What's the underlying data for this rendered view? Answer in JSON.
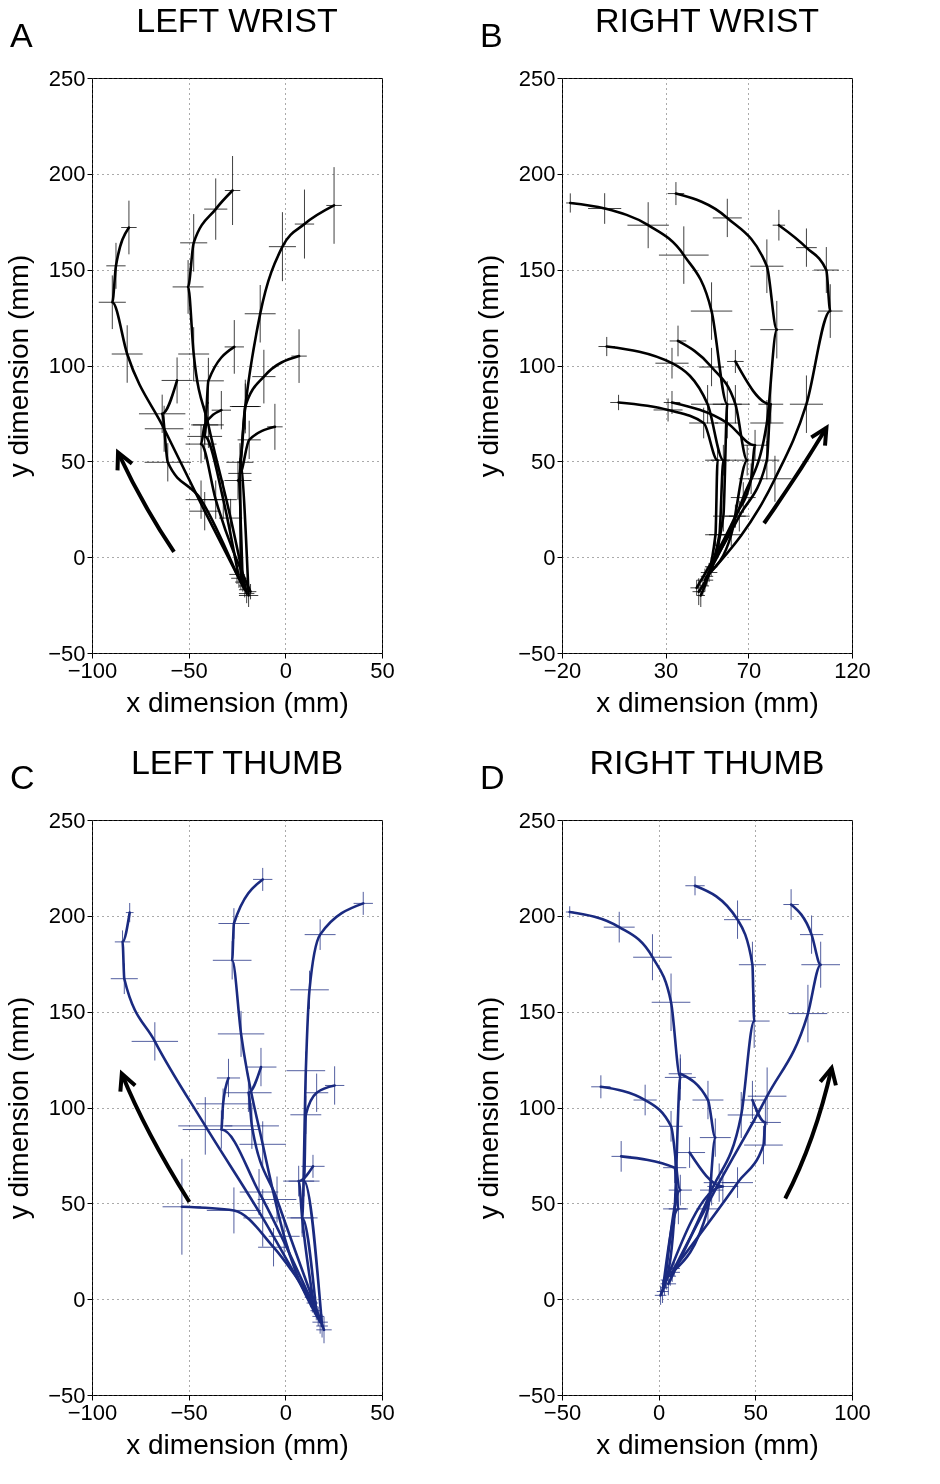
{
  "chart_data": [
    {
      "type": "line",
      "title": "LEFT WRIST",
      "xlabel": "x dimension (mm)",
      "ylabel": "y dimension (mm)",
      "annotations": [
        "A"
      ],
      "xlim": [
        -100,
        50
      ],
      "ylim": [
        -50,
        250
      ],
      "xticks": [
        -100,
        -50,
        0,
        50
      ],
      "yticks": [
        -50,
        0,
        50,
        100,
        150,
        200,
        250
      ],
      "grid": true,
      "line_style": "solid",
      "series": [
        {
          "color": "#000000",
          "x": [
            -21,
            -41.7,
            -62.7,
            -81.8,
            -89.5,
            -87.6,
            -80.9
          ],
          "values": [
            -17,
            24,
            67,
            106,
            133,
            152,
            172
          ],
          "xerrors": [
            3,
            8,
            10,
            8,
            7,
            5,
            4
          ],
          "errors": [
            4,
            10,
            12,
            15,
            14,
            12,
            14
          ]
        },
        {
          "color": "#000000",
          "x": [
            -20,
            -28.3,
            -39.8,
            -47.4,
            -50.3,
            -47.4,
            -36,
            -27.3
          ],
          "values": [
            -19,
            20.4,
            69,
            106,
            141,
            164,
            181.6,
            191.3
          ],
          "xerrors": [
            4,
            6,
            8,
            8,
            8,
            7,
            6,
            4
          ],
          "errors": [
            5,
            10,
            12,
            14,
            14,
            15,
            16,
            18
          ]
        },
        {
          "color": "#000000",
          "x": [
            -22,
            -24.5,
            -20.7,
            -13,
            -1.5,
            9.9,
            25.2
          ],
          "values": [
            -15,
            40,
            78.6,
            127,
            162,
            173.8,
            183.5
          ],
          "xerrors": [
            2,
            7,
            8,
            8,
            7,
            5,
            4
          ],
          "errors": [
            3,
            10,
            14,
            15,
            18,
            18,
            20
          ]
        },
        {
          "color": "#000000",
          "x": [
            -19,
            -23.5,
            -20.7,
            -11.1,
            7.1
          ],
          "values": [
            -20,
            49.5,
            78.6,
            94.2,
            104.9
          ],
          "xerrors": [
            5,
            7,
            7,
            6,
            4
          ],
          "errors": [
            6,
            10,
            12,
            14,
            14
          ]
        },
        {
          "color": "#000000",
          "x": [
            -23,
            -23.5,
            -18.7,
            -5.4
          ],
          "values": [
            -13,
            43.7,
            61.2,
            68
          ],
          "xerrors": [
            3,
            6,
            6,
            4
          ],
          "errors": [
            4,
            8,
            10,
            12
          ]
        },
        {
          "color": "#000000",
          "x": [
            -24,
            -32.1,
            -41.7,
            -39.8,
            -26.4
          ],
          "values": [
            -11,
            30,
            63,
            92,
            109.7
          ],
          "xerrors": [
            4,
            7,
            9,
            8,
            5
          ],
          "errors": [
            5,
            10,
            12,
            12,
            14
          ]
        },
        {
          "color": "#000000",
          "x": [
            -18,
            -36,
            -43.6,
            -41.7,
            -33.1
          ],
          "values": [
            -18,
            30,
            59,
            69,
            76.7
          ],
          "xerrors": [
            3,
            7,
            8,
            7,
            5
          ],
          "errors": [
            4,
            10,
            10,
            10,
            10
          ]
        },
        {
          "color": "#000000",
          "x": [
            -25,
            -43.6,
            -60.8,
            -63.7,
            -56
          ],
          "values": [
            -9,
            30,
            49.5,
            74.8,
            92.2
          ],
          "xerrors": [
            4,
            8,
            12,
            12,
            8
          ],
          "errors": [
            5,
            10,
            10,
            10,
            12
          ]
        }
      ]
    },
    {
      "type": "line",
      "title": "RIGHT WRIST",
      "xlabel": "x dimension (mm)",
      "ylabel": "y dimension (mm)",
      "annotations": [
        "B"
      ],
      "xlim": [
        -20,
        120
      ],
      "ylim": [
        -50,
        250
      ],
      "xticks": [
        -20,
        30,
        70,
        120
      ],
      "yticks": [
        -50,
        0,
        50,
        100,
        150,
        200,
        250
      ],
      "grid": true,
      "line_style": "solid",
      "series": [
        {
          "color": "#000000",
          "x": [
            48,
            57.9,
            59.8,
            52.2,
            38.8,
            21.6,
            0.6,
            -16
          ],
          "values": [
            -15,
            21.4,
            79.8,
            128.4,
            157.6,
            173.2,
            181.9,
            184.8
          ],
          "xerrors": [
            3,
            5,
            7,
            10,
            12,
            10,
            8,
            2
          ],
          "errors": [
            5,
            8,
            12,
            15,
            15,
            12,
            8,
            5
          ]
        },
        {
          "color": "#000000",
          "x": [
            49,
            67.5,
            78.9,
            83.7,
            78.9,
            59.8,
            35
          ],
          "values": [
            -12,
            31.1,
            70,
            118.7,
            151.8,
            177,
            189.7
          ],
          "xerrors": [
            4,
            6,
            8,
            8,
            8,
            7,
            4
          ],
          "errors": [
            6,
            8,
            12,
            15,
            14,
            10,
            6
          ]
        },
        {
          "color": "#000000",
          "x": [
            50,
            82.8,
            98,
            109.5,
            107.6,
            98,
            84.7
          ],
          "values": [
            -10,
            40.9,
            79.8,
            128.4,
            149.8,
            161.5,
            173.2
          ],
          "xerrors": [
            3,
            8,
            8,
            6,
            6,
            5,
            3
          ],
          "errors": [
            5,
            12,
            15,
            14,
            12,
            10,
            8
          ]
        },
        {
          "color": "#000000",
          "x": [
            46,
            56,
            57.9,
            50.3,
            33.1,
            1.6
          ],
          "values": [
            -18,
            11.7,
            50.6,
            79.8,
            101.2,
            109.9
          ],
          "xerrors": [
            3,
            5,
            6,
            8,
            8,
            4
          ],
          "errors": [
            7,
            6,
            8,
            10,
            8,
            5
          ]
        },
        {
          "color": "#000000",
          "x": [
            47,
            54.1,
            55.1,
            48.4,
            31.2,
            7.3
          ],
          "values": [
            -20,
            11.7,
            50.6,
            70,
            76.8,
            80.7
          ],
          "xerrors": [
            2,
            5,
            6,
            7,
            7,
            4
          ],
          "errors": [
            6,
            6,
            8,
            8,
            6,
            4
          ]
        },
        {
          "color": "#000000",
          "x": [
            51,
            61.7,
            69.4,
            63.7,
            52.2,
            36
          ],
          "values": [
            -8,
            11.7,
            50.6,
            79.8,
            99.2,
            112.8
          ],
          "xerrors": [
            4,
            5,
            6,
            7,
            6,
            4
          ],
          "errors": [
            5,
            6,
            8,
            10,
            10,
            8
          ]
        },
        {
          "color": "#000000",
          "x": [
            45,
            63.7,
            71.3,
            73.2,
            59.8,
            33.1
          ],
          "values": [
            -16,
            21.4,
            40.9,
            58.4,
            70,
            80.7
          ],
          "xerrors": [
            3,
            5,
            6,
            6,
            6,
            4
          ],
          "errors": [
            4,
            6,
            8,
            8,
            8,
            6
          ]
        },
        {
          "color": "#000000",
          "x": [
            52,
            65.6,
            78.9,
            80.8,
            63.7
          ],
          "values": [
            -5,
            21.4,
            50.6,
            79.8,
            102.1
          ],
          "xerrors": [
            3,
            5,
            6,
            6,
            4
          ],
          "errors": [
            5,
            8,
            10,
            10,
            6
          ]
        }
      ]
    },
    {
      "type": "line",
      "title": "LEFT THUMB",
      "xlabel": "x dimension (mm)",
      "ylabel": "y dimension (mm)",
      "annotations": [
        "C"
      ],
      "xlim": [
        -100,
        50
      ],
      "ylim": [
        -50,
        250
      ],
      "xticks": [
        -100,
        -50,
        0,
        50
      ],
      "yticks": [
        -50,
        0,
        50,
        100,
        150,
        200,
        250
      ],
      "grid": true,
      "line_style": "solid",
      "series": [
        {
          "color": "#1a2a80",
          "x": [
            17,
            -11.7,
            -41.4,
            -67.5,
            -83.3,
            -84.2,
            -80.5
          ],
          "values": [
            -9,
            42.4,
            90.4,
            134.5,
            167.2,
            186.4,
            201.7
          ],
          "xerrors": [
            3,
            10,
            14,
            12,
            7,
            4,
            2
          ],
          "errors": [
            5,
            15,
            15,
            10,
            8,
            6,
            5
          ]
        },
        {
          "color": "#1a2a80",
          "x": [
            18,
            -0.6,
            -11.7,
            -22.9,
            -27.5,
            -26.6,
            -11.7
          ],
          "values": [
            -12,
            32.8,
            80.8,
            138.4,
            176.8,
            196,
            219
          ],
          "xerrors": [
            4,
            8,
            12,
            12,
            10,
            8,
            5
          ],
          "errors": [
            6,
            10,
            12,
            12,
            10,
            8,
            6
          ]
        },
        {
          "color": "#1a2a80",
          "x": [
            16,
            8.7,
            10.6,
            12.5,
            18,
            40.3
          ],
          "values": [
            -6,
            42.4,
            119.2,
            161.4,
            190.2,
            206.5
          ],
          "xerrors": [
            3,
            8,
            10,
            10,
            8,
            5
          ],
          "errors": [
            5,
            10,
            10,
            10,
            8,
            6
          ]
        },
        {
          "color": "#1a2a80",
          "x": [
            19,
            9.7,
            10.6,
            16.2,
            25.5
          ],
          "values": [
            -14,
            61.6,
            96.2,
            107.7,
            111.5
          ],
          "xerrors": [
            3,
            8,
            8,
            6,
            5
          ],
          "errors": [
            6,
            8,
            10,
            10,
            10
          ]
        },
        {
          "color": "#1a2a80",
          "x": [
            15,
            8.7,
            6.9,
            14.3
          ],
          "values": [
            -4,
            42.4,
            61.6,
            69.3
          ],
          "xerrors": [
            2,
            6,
            8,
            6
          ],
          "errors": [
            4,
            8,
            8,
            6
          ]
        },
        {
          "color": "#1a2a80",
          "x": [
            20,
            -4.3,
            -17.3,
            -19.1,
            -12.6
          ],
          "values": [
            -16,
            52,
            90.4,
            107.7,
            121.1
          ],
          "xerrors": [
            4,
            10,
            14,
            12,
            8
          ],
          "errors": [
            7,
            12,
            12,
            10,
            10
          ]
        },
        {
          "color": "#1a2a80",
          "x": [
            14,
            -13.6,
            -33.1,
            -32.2,
            -29.4
          ],
          "values": [
            -2,
            55.9,
            88.5,
            101.9,
            115.4
          ],
          "xerrors": [
            3,
            10,
            20,
            14,
            6
          ],
          "errors": [
            5,
            12,
            10,
            8,
            10
          ]
        },
        {
          "color": "#1a2a80",
          "x": [
            13,
            -6.1,
            -26.6,
            -53.5
          ],
          "values": [
            1,
            27.1,
            46.3,
            48.2
          ],
          "xerrors": [
            3,
            8,
            14,
            10
          ],
          "errors": [
            5,
            10,
            12,
            25
          ]
        }
      ]
    },
    {
      "type": "line",
      "title": "RIGHT THUMB",
      "xlabel": "x dimension (mm)",
      "ylabel": "y dimension (mm)",
      "annotations": [
        "D"
      ],
      "xlim": [
        -50,
        100
      ],
      "ylim": [
        -50,
        250
      ],
      "xticks": [
        -50,
        0,
        50,
        100
      ],
      "yticks": [
        -50,
        0,
        50,
        100,
        150,
        200,
        250
      ],
      "grid": true,
      "line_style": "solid",
      "series": [
        {
          "color": "#1a2a80",
          "x": [
            4,
            8.3,
            11.2,
            6.4,
            -3.2,
            -20.4,
            -46
          ],
          "values": [
            10,
            47.1,
            115.7,
            154.9,
            178.4,
            194.1,
            202
          ],
          "xerrors": [
            3,
            6,
            8,
            10,
            10,
            8,
            2
          ],
          "errors": [
            5,
            8,
            12,
            15,
            12,
            8,
            3
          ]
        },
        {
          "color": "#1a2a80",
          "x": [
            5,
            27.4,
            42.7,
            49.4,
            48.5,
            40.8,
            18.8
          ],
          "values": [
            8,
            56.9,
            96.1,
            145.1,
            174.5,
            198,
            215.7
          ],
          "xerrors": [
            4,
            6,
            7,
            8,
            7,
            7,
            5
          ],
          "errors": [
            6,
            8,
            12,
            14,
            12,
            10,
            5
          ]
        },
        {
          "color": "#1a2a80",
          "x": [
            6,
            31.3,
            56.1,
            77.2,
            83.8,
            79.1,
            68.5
          ],
          "values": [
            12,
            60.8,
            105.9,
            149,
            174.5,
            190.2,
            205.9
          ],
          "xerrors": [
            3,
            8,
            10,
            10,
            10,
            6,
            4
          ],
          "errors": [
            5,
            10,
            15,
            15,
            12,
            10,
            8
          ]
        },
        {
          "color": "#1a2a80",
          "x": [
            3,
            11.2,
            6.4,
            -7,
            -29.9
          ],
          "values": [
            6,
            56.9,
            90.2,
            103.9,
            110.8
          ],
          "xerrors": [
            2,
            6,
            6,
            6,
            5
          ],
          "errors": [
            4,
            8,
            8,
            8,
            6
          ]
        },
        {
          "color": "#1a2a80",
          "x": [
            2,
            10.2,
            8.3,
            -19.4
          ],
          "values": [
            4,
            47.1,
            68.6,
            74.5
          ],
          "xerrors": [
            3,
            5,
            6,
            5
          ],
          "errors": [
            6,
            8,
            8,
            8
          ]
        },
        {
          "color": "#1a2a80",
          "x": [
            7,
            25.5,
            29.3,
            25.5,
            11.2
          ],
          "values": [
            14,
            47.1,
            84.3,
            103.9,
            117.6
          ],
          "xerrors": [
            4,
            6,
            8,
            8,
            6
          ],
          "errors": [
            5,
            8,
            10,
            10,
            8
          ]
        },
        {
          "color": "#1a2a80",
          "x": [
            8,
            40.8,
            54.2,
            55.2,
            48.5
          ],
          "values": [
            16,
            60.8,
            80.4,
            92.2,
            103.9
          ],
          "xerrors": [
            3,
            8,
            10,
            8,
            6
          ],
          "errors": [
            4,
            8,
            10,
            12,
            10
          ]
        },
        {
          "color": "#1a2a80",
          "x": [
            1,
            33.2,
            16
          ],
          "values": [
            2,
            58.8,
            76.5
          ],
          "xerrors": [
            3,
            8,
            8
          ],
          "errors": [
            5,
            8,
            8
          ]
        }
      ]
    }
  ]
}
